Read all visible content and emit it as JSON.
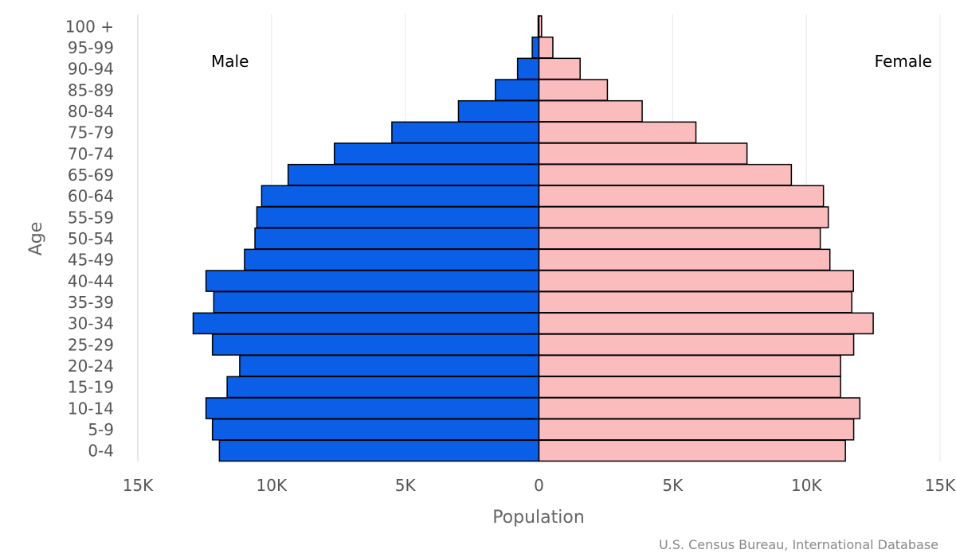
{
  "chart_data": {
    "type": "bar",
    "orientation": "horizontal-pyramid",
    "xlabel": "Population",
    "ylabel": "Age",
    "xlim": [
      -15000,
      15000
    ],
    "x_ticks": [
      -15000,
      -10000,
      -5000,
      0,
      5000,
      10000,
      15000
    ],
    "x_tick_labels": [
      "15K",
      "10K",
      "5K",
      "0",
      "5K",
      "10K",
      "15K"
    ],
    "grid": true,
    "categories": [
      "100 +",
      "95-99",
      "90-94",
      "85-89",
      "80-84",
      "75-79",
      "70-74",
      "65-69",
      "60-64",
      "55-59",
      "50-54",
      "45-49",
      "40-44",
      "35-39",
      "30-34",
      "25-29",
      "20-24",
      "15-19",
      "10-14",
      "5-9",
      "0-4"
    ],
    "series": [
      {
        "name": "Male",
        "color": "#0a5fe6",
        "values": [
          30,
          250,
          800,
          1630,
          3010,
          5500,
          7650,
          9380,
          10370,
          10550,
          10620,
          11010,
          12450,
          12160,
          12930,
          12210,
          11190,
          11660,
          12450,
          12210,
          11950
        ]
      },
      {
        "name": "Female",
        "color": "#fbbcbe",
        "values": [
          100,
          520,
          1540,
          2560,
          3860,
          5870,
          7780,
          9440,
          10640,
          10820,
          10520,
          10880,
          11760,
          11700,
          12500,
          11770,
          11280,
          11280,
          12000,
          11770,
          11460
        ]
      }
    ],
    "credit": "U.S. Census Bureau, International Database"
  }
}
